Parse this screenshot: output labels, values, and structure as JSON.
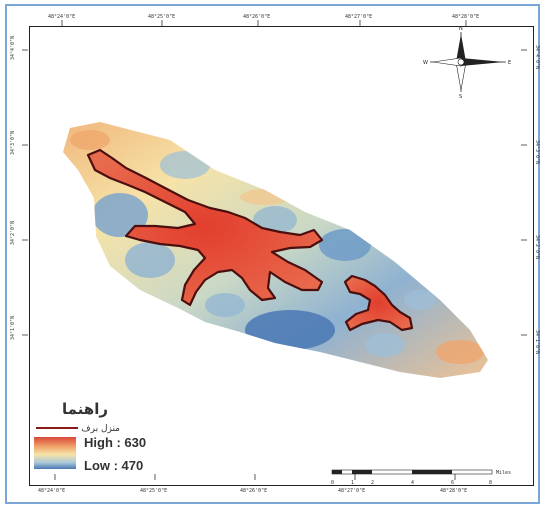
{
  "map": {
    "coordinates_top": [
      "48°24'0\"E",
      "48°25'0\"E",
      "48°26'0\"E",
      "48°27'0\"E",
      "48°28'0\"E"
    ],
    "coordinates_bottom": [
      "48°24'0\"E",
      "48°25'0\"E",
      "48°26'0\"E",
      "48°27'0\"E",
      "48°28'0\"E"
    ],
    "coordinates_left": [
      "34°4'0\"N",
      "34°3'0\"N",
      "34°2'0\"N",
      "34°1'0\"N"
    ],
    "coordinates_right": [
      "34°4'0\"N",
      "34°3'0\"N",
      "34°2'0\"N",
      "34°1'0\"N"
    ],
    "elevation_colors": {
      "high": "#d9473b",
      "mid_high": "#f0a46a",
      "mid": "#f6e3a8",
      "mid_low": "#a9c8d8",
      "low": "#4a78b5"
    },
    "boundary_color": "#4b0f0f"
  },
  "compass": {
    "n": "N",
    "s": "S",
    "e": "E",
    "w": "W"
  },
  "legend": {
    "title": "راهنما",
    "line_label": "منزل برف",
    "high_label": "High : 630",
    "low_label": "Low : 470",
    "line_color": "#8b1a1a"
  },
  "scale_bar": {
    "ticks": [
      "0",
      "1",
      "2",
      "4",
      "6",
      "8"
    ],
    "unit": "Miles"
  }
}
